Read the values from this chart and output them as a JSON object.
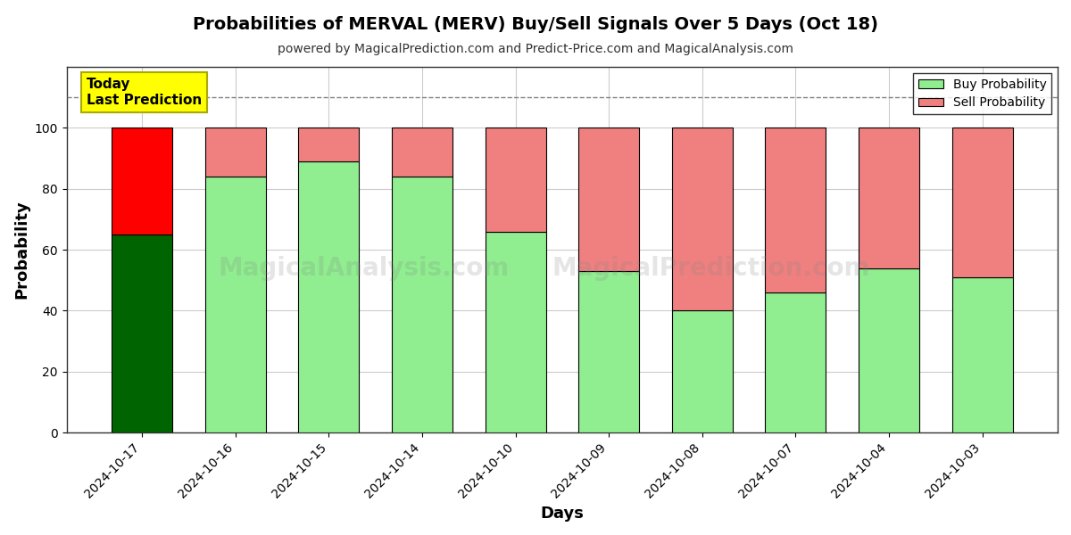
{
  "title": "Probabilities of MERVAL (MERV) Buy/Sell Signals Over 5 Days (Oct 18)",
  "subtitle": "powered by MagicalPrediction.com and Predict-Price.com and MagicalAnalysis.com",
  "xlabel": "Days",
  "ylabel": "Probability",
  "dates": [
    "2024-10-17",
    "2024-10-16",
    "2024-10-15",
    "2024-10-14",
    "2024-10-10",
    "2024-10-09",
    "2024-10-08",
    "2024-10-07",
    "2024-10-04",
    "2024-10-03"
  ],
  "buy_values": [
    65,
    84,
    89,
    84,
    66,
    53,
    40,
    46,
    54,
    51
  ],
  "sell_values": [
    35,
    16,
    11,
    16,
    34,
    47,
    60,
    54,
    46,
    49
  ],
  "today_buy_color": "#006400",
  "today_sell_color": "#FF0000",
  "buy_color": "#90EE90",
  "sell_color": "#F08080",
  "bar_edge_color": "#000000",
  "ylim": [
    0,
    120
  ],
  "yticks": [
    0,
    20,
    40,
    60,
    80,
    100
  ],
  "dashed_line_y": 110,
  "annotation_text": "Today\nLast Prediction",
  "annotation_bg": "#FFFF00",
  "legend_buy": "Buy Probability",
  "legend_sell": "Sell Probability",
  "background_color": "#ffffff",
  "plot_bg_color": "#ffffff",
  "grid_color": "#cccccc",
  "title_fontsize": 14,
  "subtitle_fontsize": 10
}
